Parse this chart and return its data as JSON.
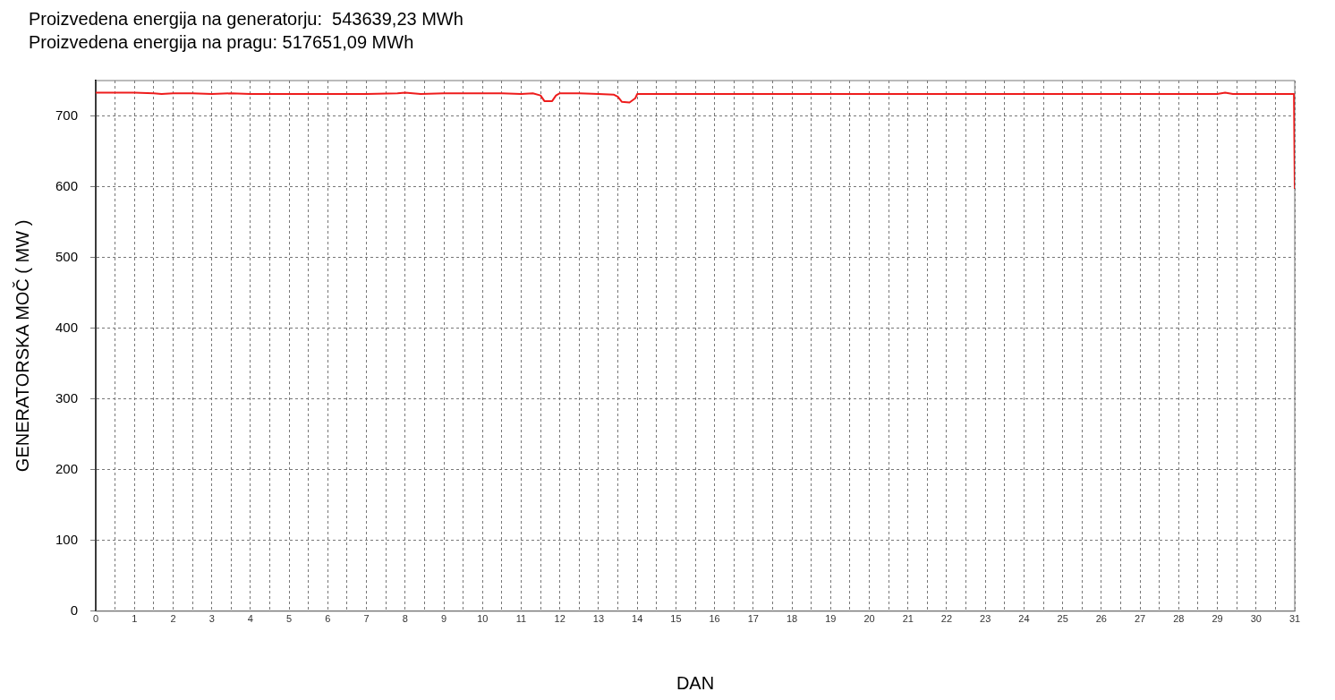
{
  "chart_data": {
    "type": "line",
    "title": "Proizvedena energija na generatorju:  543639,23 MWh",
    "subtitle": "Proizvedena energija na pragu: 517651,09 MWh",
    "xlabel": "DAN",
    "ylabel": "GENERATORSKA MOČ ( MW )",
    "x": [
      0,
      0.5,
      1,
      1.5,
      1.7,
      2,
      2.5,
      3,
      3.5,
      4,
      5,
      6,
      7,
      7.8,
      8,
      8.4,
      9,
      10,
      10.5,
      11,
      11.3,
      11.5,
      11.6,
      11.8,
      11.9,
      12,
      12.5,
      13,
      13.4,
      13.5,
      13.6,
      13.8,
      13.95,
      14,
      15,
      20,
      25,
      29,
      29.2,
      29.4,
      30,
      30.5,
      30.98,
      31
    ],
    "series": [
      {
        "color": "#ee1c1c",
        "values": [
          733,
          733,
          733,
          732,
          731,
          732,
          732,
          731,
          732,
          731,
          731,
          731,
          731,
          732,
          733,
          731,
          732,
          732,
          732,
          731,
          732,
          729,
          721,
          721,
          729,
          732,
          732,
          731,
          730,
          727,
          720,
          719,
          725,
          731,
          731,
          731,
          731,
          731,
          733,
          731,
          731,
          731,
          731,
          597
        ]
      }
    ],
    "xlim": [
      0,
      31
    ],
    "xticks": [
      0,
      {
        "value": 0.5,
        "label": null
      },
      1,
      {
        "value": 1.5,
        "label": null
      },
      2,
      {
        "value": 2.5,
        "label": null
      },
      3,
      {
        "value": 3.5,
        "label": null
      },
      4,
      {
        "value": 4.5,
        "label": null
      },
      5,
      {
        "value": 5.5,
        "label": null
      },
      6,
      {
        "value": 6.5,
        "label": null
      },
      7,
      {
        "value": 7.5,
        "label": null
      },
      8,
      {
        "value": 8.5,
        "label": null
      },
      9,
      {
        "value": 9.5,
        "label": null
      },
      10,
      {
        "value": 10.5,
        "label": null
      },
      11,
      {
        "value": 11.5,
        "label": null
      },
      12,
      {
        "value": 12.5,
        "label": null
      },
      13,
      {
        "value": 13.5,
        "label": null
      },
      14,
      {
        "value": 14.5,
        "label": null
      },
      15,
      {
        "value": 15.5,
        "label": null
      },
      16,
      {
        "value": 16.5,
        "label": null
      },
      17,
      {
        "value": 17.5,
        "label": null
      },
      18,
      {
        "value": 18.5,
        "label": null
      },
      19,
      {
        "value": 19.5,
        "label": null
      },
      20,
      {
        "value": 20.5,
        "label": null
      },
      21,
      {
        "value": 21.5,
        "label": null
      },
      22,
      {
        "value": 22.5,
        "label": null
      },
      23,
      {
        "value": 23.5,
        "label": null
      },
      24,
      {
        "value": 24.5,
        "label": null
      },
      25,
      {
        "value": 25.5,
        "label": null
      },
      26,
      {
        "value": 26.5,
        "label": null
      },
      27,
      {
        "value": 27.5,
        "label": null
      },
      28,
      {
        "value": 28.5,
        "label": null
      },
      29,
      {
        "value": 29.5,
        "label": null
      },
      30,
      {
        "value": 30.5,
        "label": null
      },
      31
    ],
    "ylim": [
      0,
      750
    ],
    "yticks": [
      0,
      100,
      200,
      300,
      400,
      500,
      600,
      700
    ],
    "grid": true,
    "legend": false,
    "marker": "none",
    "line_style": "solid"
  }
}
